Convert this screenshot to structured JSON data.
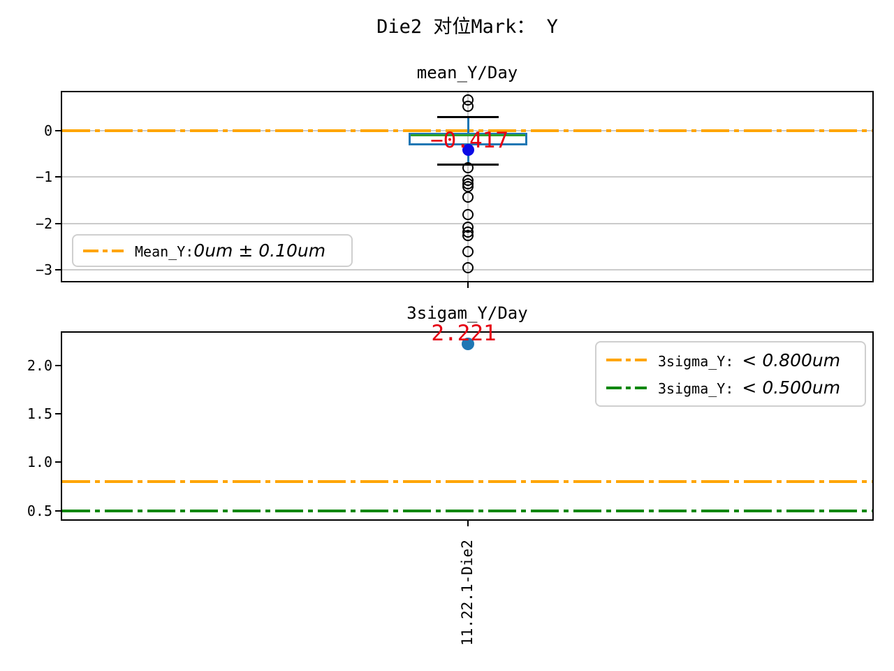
{
  "figure": {
    "suptitle": "Die2 对位Mark： Y",
    "background": "#ffffff"
  },
  "chart_data": [
    {
      "type": "boxplot",
      "title": "mean_Y/Day",
      "categories": [
        "11.22.1-Die2"
      ],
      "ylim": [
        -3.24,
        0.82
      ],
      "yticks": [
        {
          "value": 0,
          "label": "0"
        },
        {
          "value": -1,
          "label": "−1"
        },
        {
          "value": -2,
          "label": "−2"
        },
        {
          "value": -3,
          "label": "−3"
        }
      ],
      "grid": true,
      "box": {
        "q1": -0.33,
        "median": -0.11,
        "q3": -0.05,
        "whisker_low": -0.73,
        "whisker_high": 0.28,
        "mean": -0.417,
        "outliers": [
          0.65,
          0.52,
          -0.8,
          -1.07,
          -1.15,
          -1.21,
          -1.43,
          -1.81,
          -2.08,
          -2.18,
          -2.27,
          -2.61,
          -2.96
        ]
      },
      "annotation": {
        "text": "−0.417",
        "color": "#e60012",
        "anchor_value": -0.417
      },
      "ref_lines": [
        {
          "value": 0,
          "color": "#FFA500",
          "style": "dashdot"
        }
      ],
      "legend": {
        "position": "lower left",
        "entries": [
          {
            "prefix": "Mean_Y:",
            "math": "0um ± 0.10um",
            "line_color": "#FFA500"
          }
        ]
      },
      "colors": {
        "box": "#1f77b4",
        "median": "#2ca02c",
        "whisker": "#1f77b4",
        "cap": "#000000",
        "outlier": "#000000",
        "mean_marker": "#0a0ae6"
      }
    },
    {
      "type": "scatter",
      "title": "3sigam_Y/Day",
      "categories": [
        "11.22.1-Die2"
      ],
      "values": [
        2.221
      ],
      "ylim": [
        0.41,
        2.34
      ],
      "yticks": [
        {
          "value": 2.0,
          "label": "2.0"
        },
        {
          "value": 1.5,
          "label": "1.5"
        },
        {
          "value": 1.0,
          "label": "1.0"
        },
        {
          "value": 0.5,
          "label": "0.5"
        }
      ],
      "grid": false,
      "annotation": {
        "text": "2.221",
        "color": "#e60012",
        "anchor_value": 2.221
      },
      "ref_lines": [
        {
          "value": 0.8,
          "color": "#FFA500",
          "style": "dashdot"
        },
        {
          "value": 0.5,
          "color": "#0a870a",
          "style": "dashdot"
        }
      ],
      "legend": {
        "position": "upper right",
        "entries": [
          {
            "prefix": "3sigma_Y: ",
            "math": "< 0.800um",
            "line_color": "#FFA500"
          },
          {
            "prefix": "3sigma_Y: ",
            "math": "< 0.500um",
            "line_color": "#0a870a"
          }
        ]
      },
      "colors": {
        "marker": "#1f77b4"
      },
      "xtick_label": "11.22.1-Die2"
    }
  ]
}
